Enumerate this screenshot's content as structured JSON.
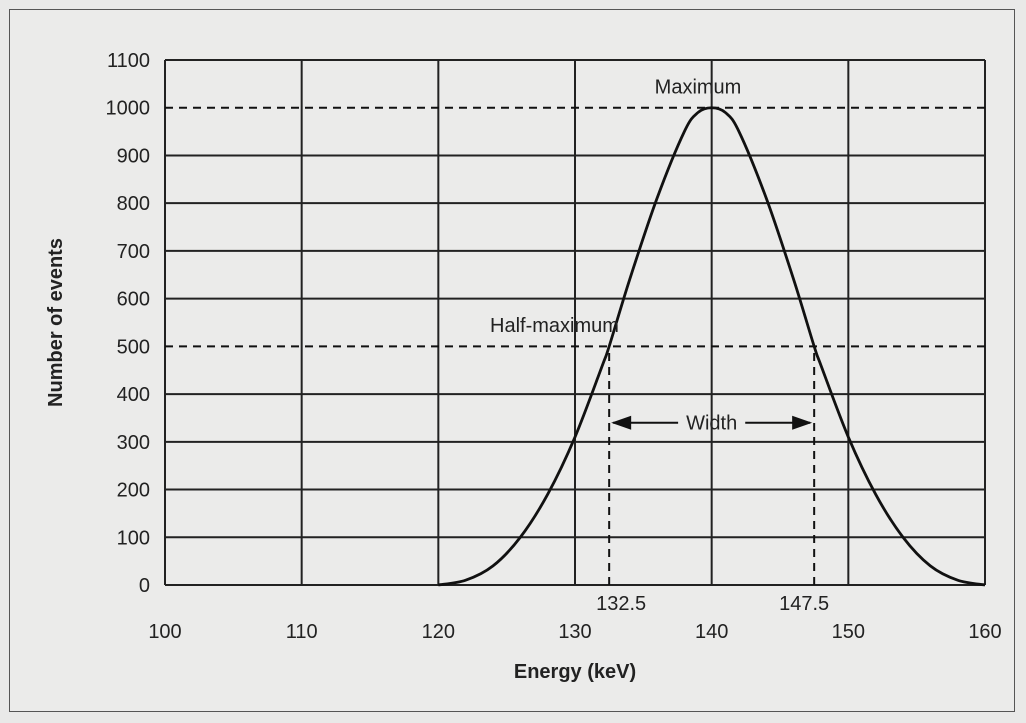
{
  "chart_data": {
    "type": "line",
    "title": "",
    "xlabel": "Energy (keV)",
    "ylabel": "Number of events",
    "xlim": [
      100,
      160
    ],
    "ylim": [
      0,
      1100
    ],
    "x_ticks": [
      100,
      110,
      120,
      130,
      140,
      150,
      160
    ],
    "y_ticks": [
      0,
      100,
      200,
      300,
      400,
      500,
      600,
      700,
      800,
      900,
      1000,
      1100
    ],
    "grid": true,
    "series": [
      {
        "x": [
          120,
          122,
          124,
          126,
          128,
          130,
          132,
          132.5,
          134,
          136,
          138,
          139,
          140,
          141,
          142,
          144,
          146,
          147.5,
          148,
          150,
          152,
          154,
          156,
          158,
          160
        ],
        "y": [
          0,
          10,
          40,
          100,
          190,
          310,
          460,
          500,
          640,
          810,
          950,
          990,
          1000,
          990,
          950,
          810,
          640,
          500,
          460,
          310,
          190,
          100,
          40,
          10,
          0
        ]
      }
    ],
    "reference_lines": [
      {
        "axis": "y",
        "value": 1000,
        "style": "dashed"
      },
      {
        "axis": "y",
        "value": 500,
        "style": "dashed"
      },
      {
        "axis": "x",
        "value": 132.5,
        "style": "dashed",
        "from": 0,
        "to": 500
      },
      {
        "axis": "x",
        "value": 147.5,
        "style": "dashed",
        "from": 0,
        "to": 500
      }
    ],
    "annotations": {
      "maximum": {
        "text": "Maximum",
        "x": 139,
        "y": 1045
      },
      "half_maximum": {
        "text": "Half-maximum",
        "x": 128.5,
        "y": 545
      },
      "width": {
        "text": "Width",
        "x": 140,
        "y": 340
      },
      "left_marker": {
        "text": "132.5",
        "x": 132.5
      },
      "right_marker": {
        "text": "147.5",
        "x": 147.5
      }
    },
    "colors": {
      "line": "#111111",
      "grid": "#222222",
      "background": "#ebebea"
    }
  }
}
